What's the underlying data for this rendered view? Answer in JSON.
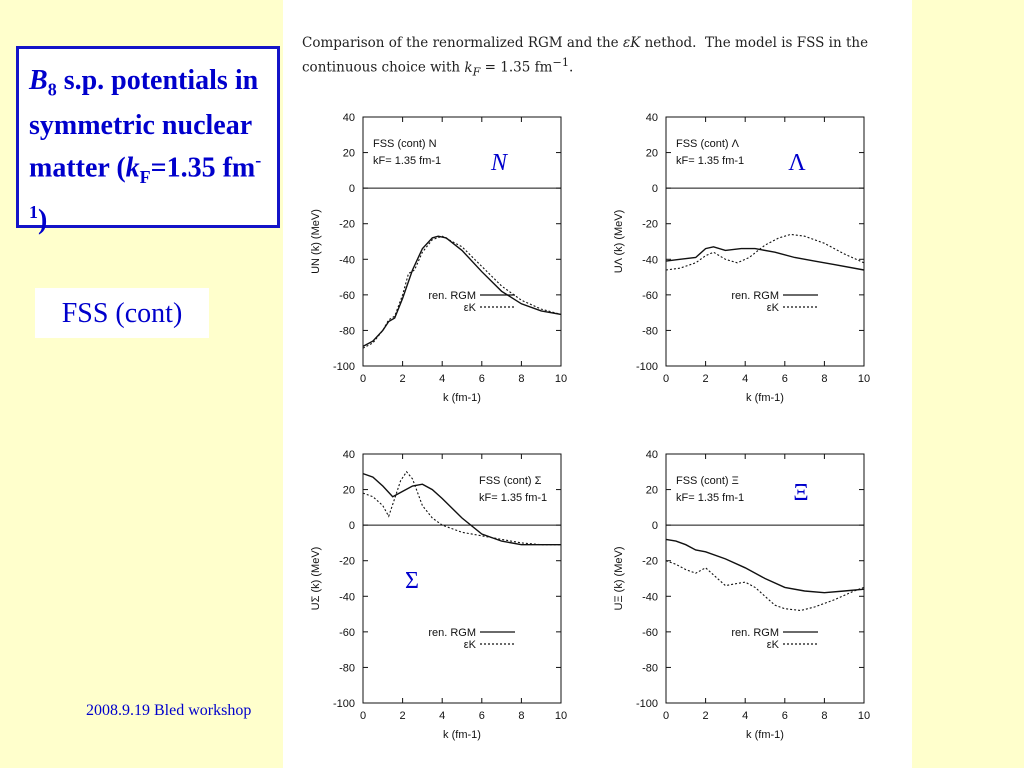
{
  "slide": {
    "title_html": "<i>B</i><sub style=\"font-size:18px\">8</sub> s.p. potentials in symmetric nuclear matter (<i>k</i><sub style=\"font-size:18px\">F</sub>=1.35 fm<sup style=\"font-size:18px\">-1</sup>)",
    "subtitle": "FSS (cont)",
    "footer": "2008.9.19 Bled workshop",
    "caption_html": "Comparison of the renormalized RGM and the <i>εK</i> nethod.&nbsp; The model is FSS in the continuous choice with <i>k<sub>F</sub></i> = 1.35 fm<sup>−1</sup>."
  },
  "chart_data": [
    {
      "type": "line",
      "legend_title": "FSS (cont) N",
      "legend_kf": "kF= 1.35 fm-1",
      "big_label": "N",
      "xlabel": "k (fm-1)",
      "ylabel": "UN (k) (MeV)",
      "xlim": [
        0,
        10
      ],
      "ylim": [
        -100,
        40
      ],
      "xticks": [
        0,
        2,
        4,
        6,
        8,
        10
      ],
      "yticks": [
        40,
        20,
        0,
        -20,
        -40,
        -60,
        -80,
        -100
      ],
      "series": [
        {
          "name": "ren. RGM",
          "style": "solid",
          "x": [
            0,
            0.5,
            1.0,
            1.3,
            1.6,
            2.0,
            2.5,
            3.0,
            3.5,
            3.8,
            4.2,
            5.0,
            6.0,
            7.0,
            8.0,
            9.0,
            10.0
          ],
          "y": [
            -89,
            -86,
            -80,
            -75,
            -73,
            -62,
            -46,
            -34,
            -28,
            -27,
            -28,
            -35,
            -47,
            -58,
            -65,
            -69,
            -71
          ]
        },
        {
          "name": "εK",
          "style": "dashed",
          "x": [
            0,
            0.5,
            1.0,
            1.3,
            1.6,
            2.0,
            2.3,
            2.6,
            3.0,
            3.5,
            4.0,
            5.0,
            6.0,
            7.0,
            8.0,
            9.0,
            10.0
          ],
          "y": [
            -90,
            -87,
            -80,
            -74,
            -72,
            -60,
            -48,
            -46,
            -36,
            -29,
            -27,
            -33,
            -44,
            -55,
            -63,
            -68,
            -71
          ]
        }
      ]
    },
    {
      "type": "line",
      "legend_title": "FSS (cont) Λ",
      "legend_kf": "kF= 1.35 fm-1",
      "big_label": "Λ",
      "xlabel": "k (fm-1)",
      "ylabel": "UΛ (k) (MeV)",
      "xlim": [
        0,
        10
      ],
      "ylim": [
        -100,
        40
      ],
      "xticks": [
        0,
        2,
        4,
        6,
        8,
        10
      ],
      "yticks": [
        40,
        20,
        0,
        -20,
        -40,
        -60,
        -80,
        -100
      ],
      "series": [
        {
          "name": "ren. RGM",
          "style": "solid",
          "x": [
            0,
            0.7,
            1.5,
            2.0,
            2.4,
            3.0,
            3.8,
            4.5,
            5.5,
            6.5,
            7.5,
            8.5,
            10.0
          ],
          "y": [
            -41,
            -40,
            -39,
            -34,
            -33,
            -35,
            -34,
            -34,
            -36,
            -39,
            -41,
            -43,
            -46
          ]
        },
        {
          "name": "εK",
          "style": "dashed",
          "x": [
            0,
            0.7,
            1.5,
            2.0,
            2.4,
            3.0,
            3.6,
            4.2,
            5.0,
            5.7,
            6.3,
            7.0,
            8.0,
            9.0,
            10.0
          ],
          "y": [
            -46,
            -45,
            -42,
            -38,
            -36,
            -40,
            -42,
            -39,
            -32,
            -28,
            -26,
            -27,
            -31,
            -37,
            -42
          ]
        }
      ]
    },
    {
      "type": "line",
      "legend_title": "FSS (cont) Σ",
      "legend_kf": "kF= 1.35 fm-1",
      "big_label": "Σ",
      "xlabel": "k (fm-1)",
      "ylabel": "UΣ (k) (MeV)",
      "xlim": [
        0,
        10
      ],
      "ylim": [
        -100,
        40
      ],
      "xticks": [
        0,
        2,
        4,
        6,
        8,
        10
      ],
      "yticks": [
        40,
        20,
        0,
        -20,
        -40,
        -60,
        -80,
        -100
      ],
      "series": [
        {
          "name": "ren. RGM",
          "style": "solid",
          "x": [
            0,
            0.5,
            1.0,
            1.5,
            2.0,
            2.5,
            3.0,
            3.5,
            4.0,
            5.0,
            6.0,
            7.0,
            8.0,
            9.0,
            10.0
          ],
          "y": [
            29,
            27,
            22,
            16,
            19,
            22,
            23,
            20,
            15,
            4,
            -5,
            -9,
            -11,
            -11,
            -11
          ]
        },
        {
          "name": "εK",
          "style": "dashed",
          "x": [
            0,
            0.5,
            1.0,
            1.3,
            1.6,
            1.9,
            2.2,
            2.5,
            3.0,
            3.5,
            4.0,
            5.0,
            6.0,
            7.0,
            8.0,
            9.0,
            10.0
          ],
          "y": [
            18,
            16,
            11,
            5,
            15,
            25,
            30,
            26,
            11,
            4,
            0,
            -4,
            -6,
            -8,
            -10,
            -11,
            -11
          ]
        }
      ]
    },
    {
      "type": "line",
      "legend_title": "FSS (cont) Ξ",
      "legend_kf": "kF= 1.35 fm-1",
      "big_label": "Ξ",
      "xlabel": "k (fm-1)",
      "ylabel": "UΞ (k) (MeV)",
      "xlim": [
        0,
        10
      ],
      "ylim": [
        -100,
        40
      ],
      "xticks": [
        0,
        2,
        4,
        6,
        8,
        10
      ],
      "yticks": [
        40,
        20,
        0,
        -20,
        -40,
        -60,
        -80,
        -100
      ],
      "series": [
        {
          "name": "ren. RGM",
          "style": "solid",
          "x": [
            0,
            0.5,
            1.0,
            1.5,
            2.0,
            3.0,
            4.0,
            5.0,
            6.0,
            7.0,
            8.0,
            9.0,
            10.0
          ],
          "y": [
            -8,
            -9,
            -11,
            -14,
            -15,
            -19,
            -24,
            -30,
            -35,
            -37,
            -38,
            -37,
            -36
          ]
        },
        {
          "name": "εK",
          "style": "dashed",
          "x": [
            0,
            0.5,
            1.0,
            1.5,
            2.0,
            2.5,
            3.0,
            3.5,
            4.0,
            4.5,
            5.0,
            5.5,
            6.0,
            6.8,
            7.5,
            8.5,
            9.5,
            10.0
          ],
          "y": [
            -20,
            -22,
            -25,
            -27,
            -24,
            -29,
            -34,
            -33,
            -32,
            -35,
            -40,
            -45,
            -47,
            -48,
            -46,
            -42,
            -37,
            -35
          ]
        }
      ]
    }
  ]
}
